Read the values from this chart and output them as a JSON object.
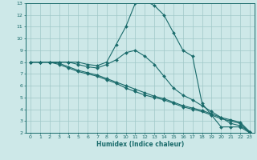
{
  "xlabel": "Humidex (Indice chaleur)",
  "xlim": [
    -0.5,
    23.5
  ],
  "ylim": [
    2,
    13
  ],
  "xticks": [
    0,
    1,
    2,
    3,
    4,
    5,
    6,
    7,
    8,
    9,
    10,
    11,
    12,
    13,
    14,
    15,
    16,
    17,
    18,
    19,
    20,
    21,
    22,
    23
  ],
  "yticks": [
    2,
    3,
    4,
    5,
    6,
    7,
    8,
    9,
    10,
    11,
    12,
    13
  ],
  "bg_color": "#cde8e8",
  "line_color": "#1a6b6b",
  "grid_color": "#a0c8c8",
  "lines": [
    {
      "x": [
        0,
        1,
        2,
        3,
        4,
        5,
        6,
        7,
        8,
        9,
        10,
        11,
        12,
        13,
        14,
        15,
        16,
        17,
        18,
        19,
        20,
        21,
        22,
        23
      ],
      "y": [
        8,
        8,
        8,
        8,
        8,
        8,
        7.8,
        7.7,
        8,
        9.5,
        11,
        13,
        13.2,
        12.8,
        12,
        10.5,
        9,
        8.5,
        4.5,
        3.5,
        2.5,
        2.5,
        2.5,
        2
      ]
    },
    {
      "x": [
        0,
        1,
        2,
        3,
        4,
        5,
        6,
        7,
        8,
        9,
        10,
        11,
        12,
        13,
        14,
        15,
        16,
        17,
        18,
        19,
        20,
        21,
        22,
        23
      ],
      "y": [
        8,
        8,
        8,
        8,
        8,
        7.8,
        7.6,
        7.5,
        7.8,
        8.2,
        8.8,
        9.0,
        8.5,
        7.8,
        6.8,
        5.8,
        5.2,
        4.8,
        4.3,
        3.8,
        3.3,
        2.8,
        2.6,
        2.1
      ]
    },
    {
      "x": [
        0,
        1,
        2,
        3,
        4,
        5,
        6,
        7,
        8,
        9,
        10,
        11,
        12,
        13,
        14,
        15,
        16,
        17,
        18,
        19,
        20,
        21,
        22,
        23
      ],
      "y": [
        8,
        8,
        8,
        7.8,
        7.5,
        7.2,
        7.0,
        6.8,
        6.5,
        6.2,
        5.8,
        5.5,
        5.2,
        5.0,
        4.8,
        4.5,
        4.2,
        4.0,
        3.8,
        3.5,
        3.2,
        3.0,
        2.8,
        2.0
      ]
    },
    {
      "x": [
        0,
        1,
        2,
        3,
        4,
        5,
        6,
        7,
        8,
        9,
        10,
        11,
        12,
        13,
        14,
        15,
        16,
        17,
        18,
        19,
        20,
        21,
        22,
        23
      ],
      "y": [
        8,
        8,
        8,
        7.9,
        7.6,
        7.3,
        7.1,
        6.9,
        6.6,
        6.3,
        6.0,
        5.7,
        5.4,
        5.1,
        4.9,
        4.6,
        4.3,
        4.1,
        3.9,
        3.6,
        3.3,
        3.1,
        2.9,
        2.1
      ]
    }
  ]
}
